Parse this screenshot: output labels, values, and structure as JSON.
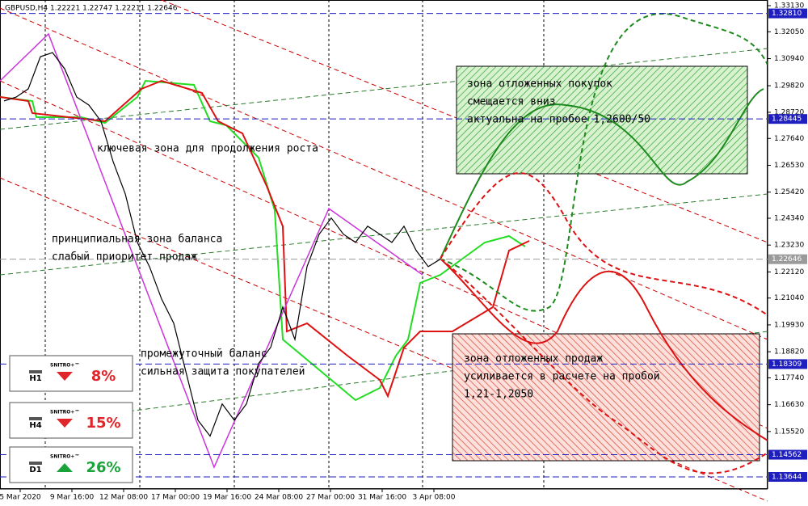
{
  "chart_data": {
    "type": "line",
    "title": "GBPUSD,H4  1.22221 1.22747 1.22211 1.22646",
    "x_labels": [
      "5 Mar 2020",
      "9 Mar 16:00",
      "12 Mar 08:00",
      "17 Mar 00:00",
      "19 Mar 16:00",
      "24 Mar 08:00",
      "27 Mar 00:00",
      "31 Mar 16:00",
      "3 Apr 08:00"
    ],
    "series": [
      {
        "name": "GBPUSD",
        "color": "#000000",
        "values": [
          1.2919,
          1.2935,
          1.2969,
          1.3102,
          1.3119,
          1.3052,
          1.2935,
          1.2902,
          1.2835,
          1.2668,
          1.2535,
          1.2334,
          1.2234,
          1.21,
          1.2,
          1.18,
          1.1599,
          1.1533,
          1.1666,
          1.1599,
          1.1666,
          1.1833,
          1.19,
          1.2067,
          1.1933,
          1.2234,
          1.2368,
          1.2435,
          1.2368,
          1.2334,
          1.2401,
          1.2368,
          1.2334,
          1.2401,
          1.2301,
          1.2234,
          1.2265
        ]
      }
    ],
    "ylim": [
      1.13143,
      1.33364
    ],
    "yticks": [
      {
        "value": 1.3313,
        "label": "1.33130"
      },
      {
        "value": 1.3205,
        "label": "1.32050"
      },
      {
        "value": 1.3094,
        "label": "1.30940"
      },
      {
        "value": 1.2982,
        "label": "1.29820"
      },
      {
        "value": 1.2872,
        "label": "1.28720"
      },
      {
        "value": 1.2764,
        "label": "1.27640"
      },
      {
        "value": 1.2653,
        "label": "1.26530"
      },
      {
        "value": 1.2542,
        "label": "1.25420"
      },
      {
        "value": 1.2434,
        "label": "1.24340"
      },
      {
        "value": 1.2323,
        "label": "1.23230"
      },
      {
        "value": 1.2212,
        "label": "1.22120"
      },
      {
        "value": 1.2104,
        "label": "1.21040"
      },
      {
        "value": 1.1993,
        "label": "1.19930"
      },
      {
        "value": 1.1882,
        "label": "1.18820"
      },
      {
        "value": 1.1774,
        "label": "1.17740"
      },
      {
        "value": 1.1663,
        "label": "1.16630"
      },
      {
        "value": 1.1552,
        "label": "1.15520"
      }
    ],
    "levels": [
      {
        "value": 1.3281,
        "label": "1.32810",
        "color": "#1f1fbf"
      },
      {
        "value": 1.28445,
        "label": "1.28445",
        "color": "#1f1fbf"
      },
      {
        "value": 1.22646,
        "label": "1.22646",
        "color": "#9a9a9a"
      },
      {
        "value": 1.18309,
        "label": "1.18309",
        "color": "#1f1fbf"
      },
      {
        "value": 1.14562,
        "label": "1.14562",
        "color": "#1f1fbf"
      },
      {
        "value": 1.13644,
        "label": "1.13644",
        "color": "#1f1fbf"
      }
    ],
    "annotations": [
      {
        "lines": [
          "зона отложенных покупок",
          "смещается вниз",
          "актуальна на пробое 1,2600/50"
        ]
      },
      {
        "lines": [
          "ключевая зона для продолжения роста"
        ]
      },
      {
        "lines": [
          "принципиальная зона баланса",
          "слабый приоритет продаж"
        ]
      },
      {
        "lines": [
          "промежуточный баланс",
          "сильная защита покупателей"
        ]
      },
      {
        "lines": [
          "зона отложенных продаж",
          "усиливается в расчете на пробой",
          "1,21-1,2050"
        ]
      }
    ],
    "indicators": [
      {
        "timeframe": "H1",
        "brand": "SNITRO+™",
        "value": 8,
        "value_label": "8%",
        "color": "#e0262a"
      },
      {
        "timeframe": "H4",
        "brand": "SNITRO+™",
        "value": 15,
        "value_label": "15%",
        "color": "#e0262a"
      },
      {
        "timeframe": "D1",
        "brand": "SNITRO+™",
        "value": 26,
        "value_label": "26%",
        "color": "#1aa33a"
      }
    ]
  }
}
